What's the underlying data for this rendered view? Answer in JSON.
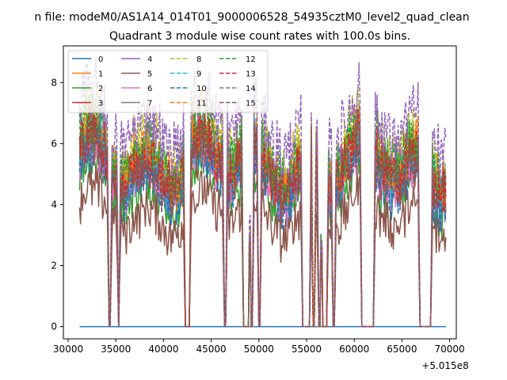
{
  "chart_data": {
    "type": "line",
    "suptitle": "n file: modeM0/AS1A14_014T01_9000006528_54935cztM0_level2_quad_clean",
    "title": "Quadrant 3 module wise count rates with 100.0s bins.",
    "xlabel": "",
    "ylabel": "",
    "x_offset_label": "+5.015e8",
    "xlim": [
      29500,
      70700
    ],
    "ylim": [
      -0.4,
      9.2
    ],
    "x_ticks": [
      30000,
      35000,
      40000,
      45000,
      50000,
      55000,
      60000,
      65000,
      70000
    ],
    "y_ticks": [
      0,
      2,
      4,
      6,
      8
    ],
    "x_tick_labels": [
      "30000",
      "35000",
      "40000",
      "45000",
      "50000",
      "55000",
      "60000",
      "65000",
      "70000"
    ],
    "y_tick_labels": [
      "0",
      "2",
      "4",
      "6",
      "8"
    ],
    "x_range": [
      31200,
      69600
    ],
    "gaps": [
      {
        "start": 34300,
        "end": 34420
      },
      {
        "start": 35280,
        "end": 35380
      },
      {
        "start": 42300,
        "end": 42700
      },
      {
        "start": 46350,
        "end": 46500
      },
      {
        "start": 48400,
        "end": 48950
      },
      {
        "start": 49200,
        "end": 49350
      },
      {
        "start": 49950,
        "end": 50100
      },
      {
        "start": 54600,
        "end": 55350
      },
      {
        "start": 55700,
        "end": 55850
      },
      {
        "start": 56300,
        "end": 56450
      },
      {
        "start": 56700,
        "end": 57100
      },
      {
        "start": 57800,
        "end": 57950
      },
      {
        "start": 60750,
        "end": 62000
      },
      {
        "start": 66850,
        "end": 67800
      },
      {
        "start": 67900,
        "end": 68050
      }
    ],
    "series": [
      {
        "name": "0",
        "color": "#1f77b4",
        "dash": "solid",
        "mean": 0.0
      },
      {
        "name": "1",
        "color": "#ff7f0e",
        "dash": "solid",
        "mean": 5.3
      },
      {
        "name": "2",
        "color": "#2ca02c",
        "dash": "solid",
        "mean": 4.6
      },
      {
        "name": "3",
        "color": "#d62728",
        "dash": "solid",
        "mean": 5.2
      },
      {
        "name": "4",
        "color": "#9467bd",
        "dash": "solid",
        "mean": 5.0
      },
      {
        "name": "5",
        "color": "#8c564b",
        "dash": "solid",
        "mean": 3.7
      },
      {
        "name": "6",
        "color": "#e377c2",
        "dash": "solid",
        "mean": 5.1
      },
      {
        "name": "7",
        "color": "#7f7f7f",
        "dash": "solid",
        "mean": 5.5
      },
      {
        "name": "8",
        "color": "#bcbd22",
        "dash": "dashed",
        "mean": 6.1
      },
      {
        "name": "9",
        "color": "#17becf",
        "dash": "dashed",
        "mean": 5.4
      },
      {
        "name": "10",
        "color": "#1f77b4",
        "dash": "dashed",
        "mean": 4.9
      },
      {
        "name": "11",
        "color": "#ff7f0e",
        "dash": "dashed",
        "mean": 5.6
      },
      {
        "name": "12",
        "color": "#2ca02c",
        "dash": "dashed",
        "mean": 5.8
      },
      {
        "name": "13",
        "color": "#d62728",
        "dash": "dashed",
        "mean": 5.4
      },
      {
        "name": "14",
        "color": "#9467bd",
        "dash": "dashed",
        "mean": 6.7
      },
      {
        "name": "15",
        "color": "#8c564b",
        "dash": "dashed",
        "mean": 5.2
      }
    ],
    "legend_location": "upper-left",
    "grid": false
  }
}
